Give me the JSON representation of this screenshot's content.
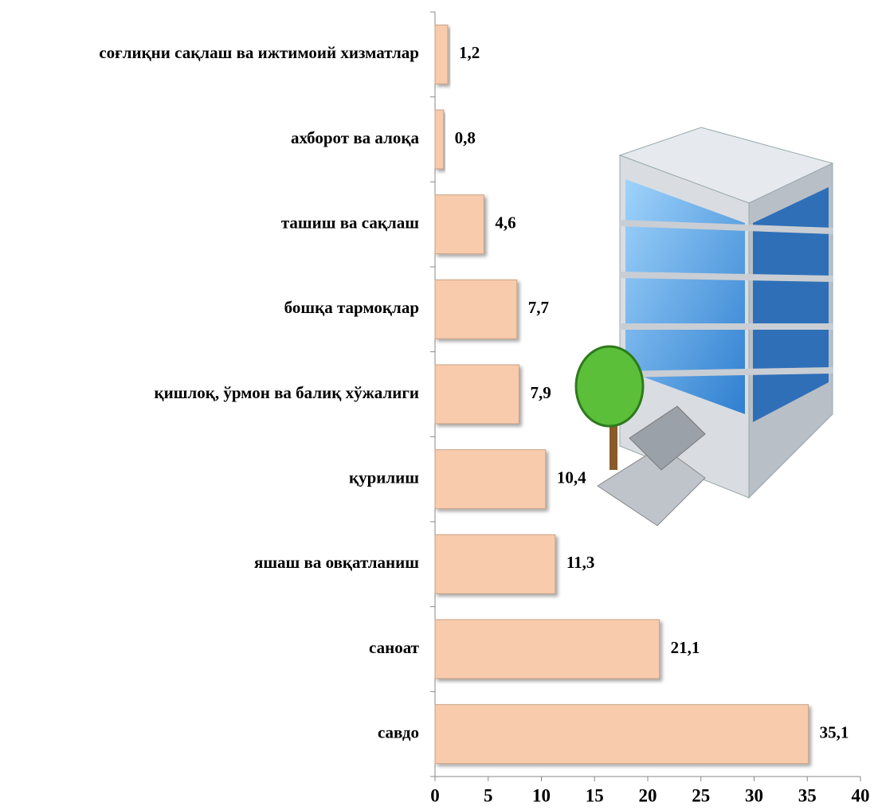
{
  "chart_data": {
    "type": "barh",
    "categories": [
      "соғлиқни сақлаш ва ижтимоий хизматлар",
      "ахборот ва алоқа",
      "ташиш ва сақлаш",
      "бошқа тармоқлар",
      "қишлоқ, ўрмон ва балиқ хўжалиги",
      "қурилиш",
      "яшаш ва овқатланиш",
      "саноат",
      "савдо"
    ],
    "values": [
      1.2,
      0.8,
      4.6,
      7.7,
      7.9,
      10.4,
      11.3,
      21.1,
      35.1
    ],
    "value_labels": [
      "1,2",
      "0,8",
      "4,6",
      "7,7",
      "7,9",
      "10,4",
      "11,3",
      "21,1",
      "35,1"
    ],
    "color": "#f8cbad",
    "xlim": [
      0,
      40
    ],
    "xticks": [
      0,
      5,
      10,
      15,
      20,
      25,
      30,
      35,
      40
    ],
    "grid": false
  }
}
